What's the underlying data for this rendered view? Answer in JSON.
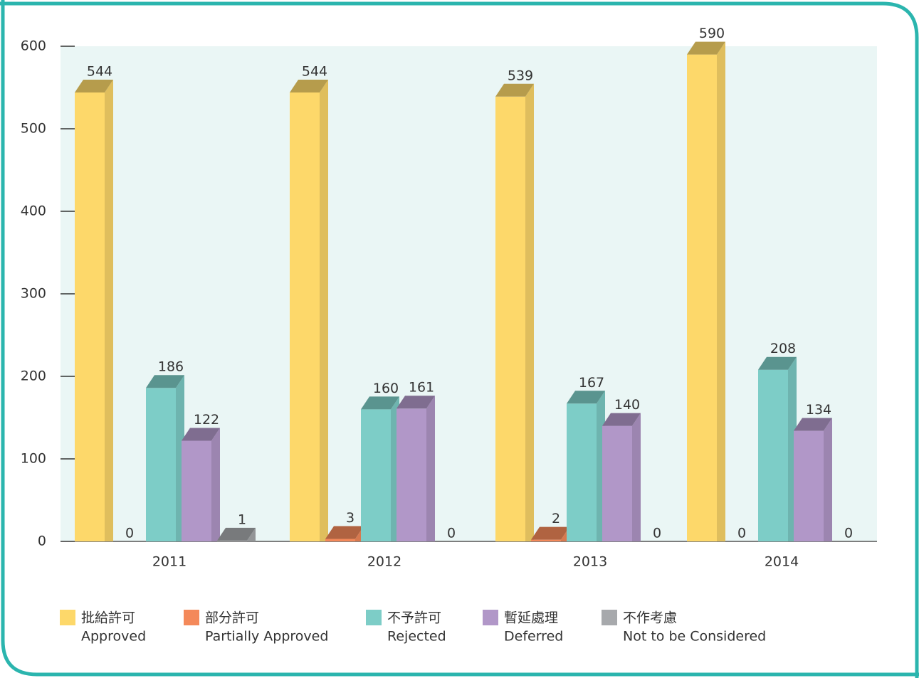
{
  "chart_data": {
    "type": "bar3d",
    "categories": [
      "2011",
      "2012",
      "2013",
      "2014"
    ],
    "series": [
      {
        "name": "批給許可",
        "name_en": "Approved",
        "color": "#fdd86a",
        "values": [
          544,
          544,
          539,
          590
        ]
      },
      {
        "name": "部分許可",
        "name_en": "Partially Approved",
        "color": "#f4895a",
        "values": [
          0,
          3,
          2,
          0
        ]
      },
      {
        "name": "不予許可",
        "name_en": "Rejected",
        "color": "#7dcdc7",
        "values": [
          186,
          160,
          167,
          208
        ]
      },
      {
        "name": "暫延處理",
        "name_en": "Deferred",
        "color": "#b197c8",
        "values": [
          122,
          161,
          140,
          134
        ]
      },
      {
        "name": "不作考慮",
        "name_en": "Not to be Considered",
        "color": "#a7a9ac",
        "values": [
          1,
          0,
          0,
          0
        ]
      }
    ],
    "ylim": [
      0,
      600
    ],
    "yticks": [
      0,
      100,
      200,
      300,
      400,
      500,
      600
    ]
  }
}
